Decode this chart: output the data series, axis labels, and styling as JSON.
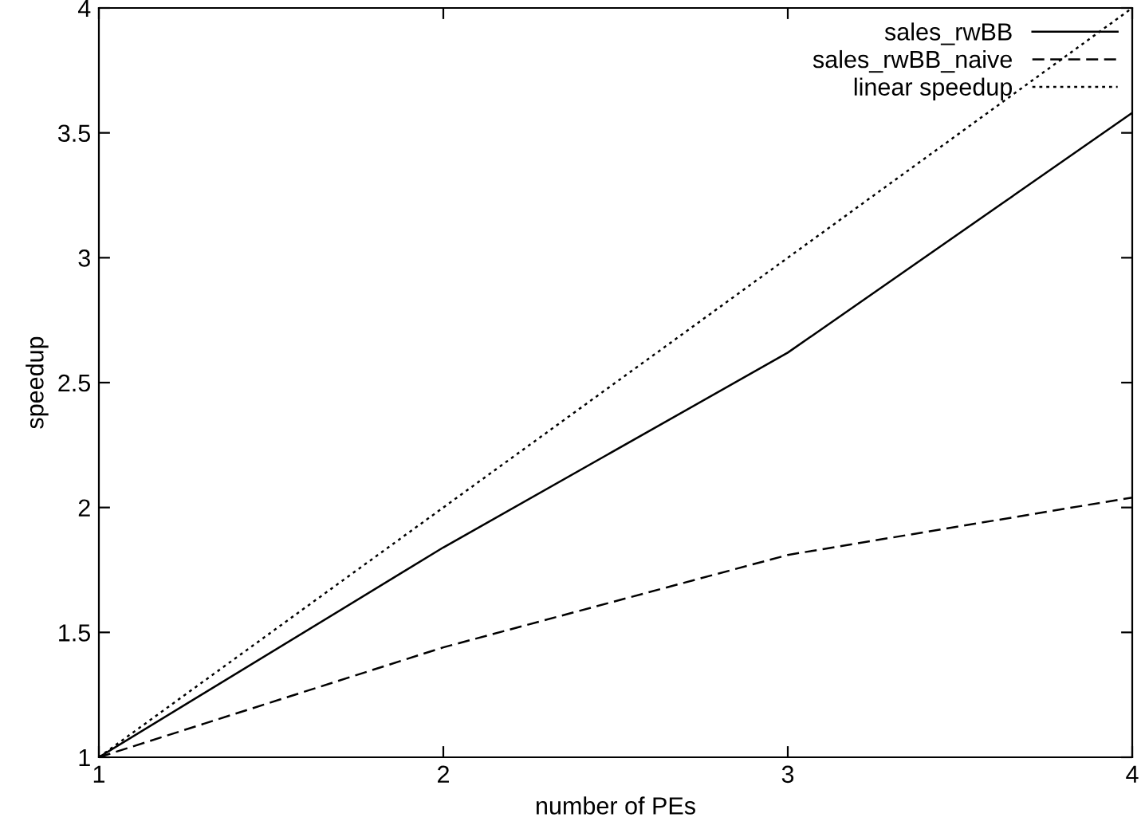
{
  "chart_data": {
    "type": "line",
    "xlabel": "number of PEs",
    "ylabel": "speedup",
    "x": [
      1,
      2,
      3,
      4
    ],
    "series": [
      {
        "name": "sales_rwBB",
        "color": "#000000",
        "line_style": "solid",
        "values": [
          1,
          1.84,
          2.62,
          3.58
        ]
      },
      {
        "name": "sales_rwBB_naive",
        "color": "#000000",
        "line_style": "dashed",
        "values": [
          1,
          1.44,
          1.81,
          2.04
        ]
      },
      {
        "name": "linear speedup",
        "color": "#000000",
        "line_style": "dotted",
        "values": [
          1,
          2,
          3,
          4
        ]
      }
    ],
    "xlim": [
      1,
      4
    ],
    "xticks": [
      1,
      2,
      3,
      4
    ],
    "ylim": [
      1,
      4
    ],
    "yticks": [
      1,
      1.5,
      2,
      2.5,
      3,
      3.5,
      4
    ],
    "grid": false,
    "legend": "top right",
    "marker": "none"
  }
}
